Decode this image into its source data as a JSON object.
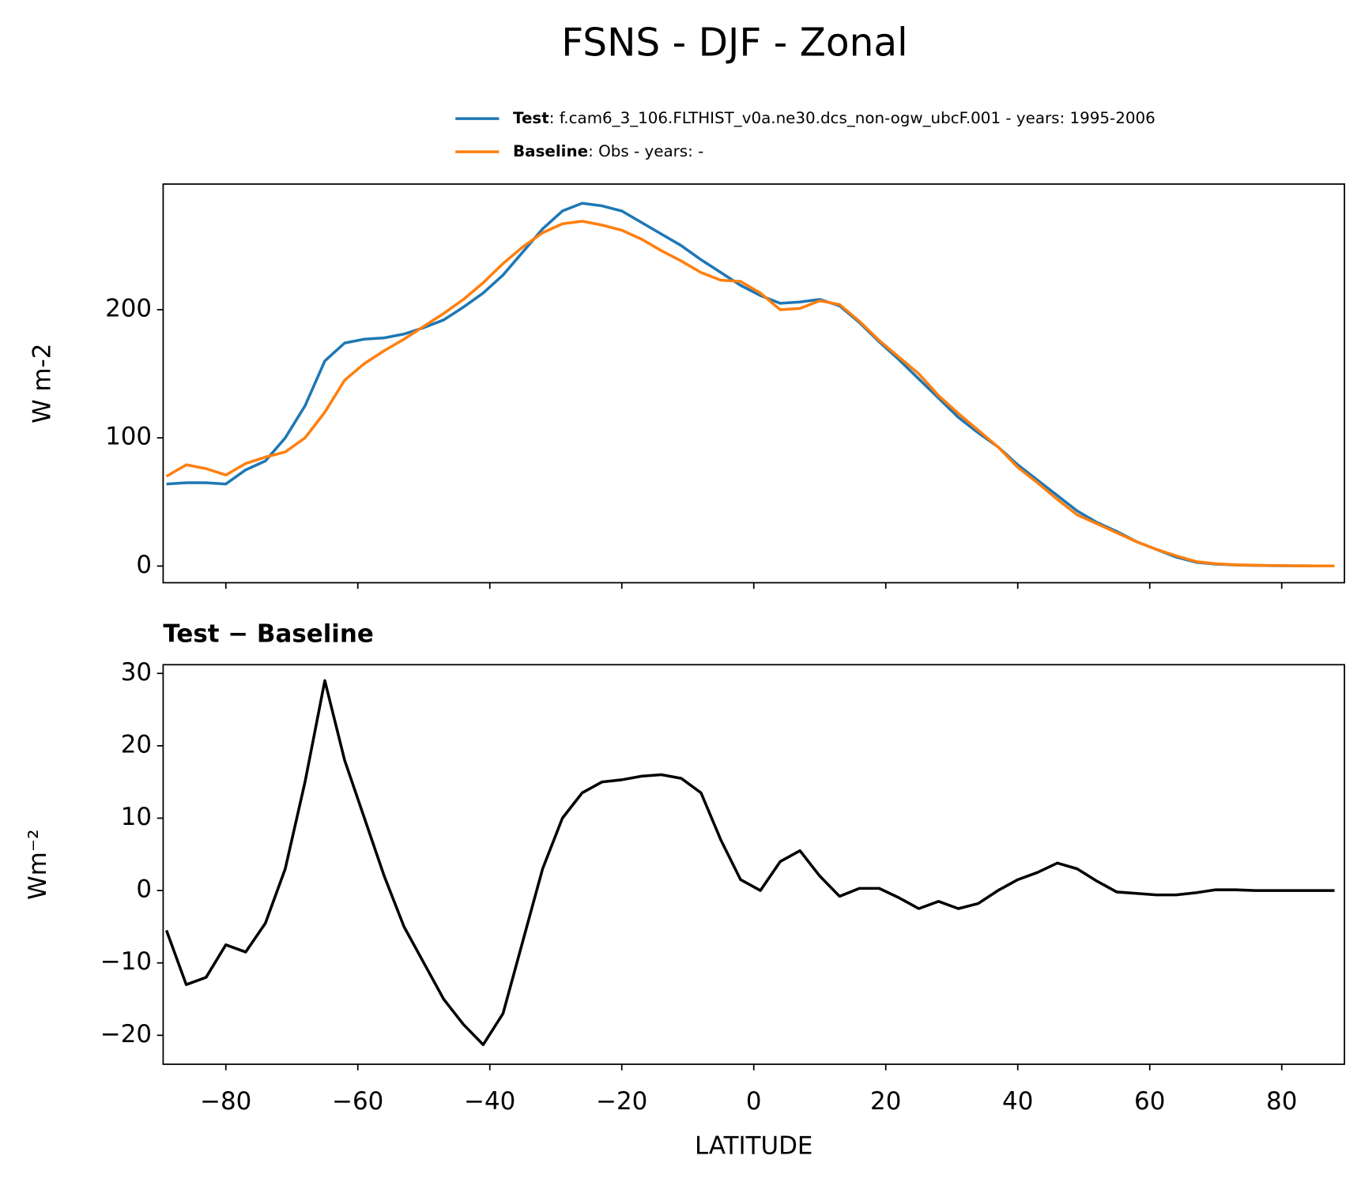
{
  "title": "FSNS - DJF - Zonal",
  "chart_data": [
    {
      "type": "line",
      "ylabel": "W m-2",
      "x": [
        -89,
        -86,
        -83,
        -80,
        -77,
        -74,
        -71,
        -68,
        -65,
        -62,
        -59,
        -56,
        -53,
        -50,
        -47,
        -44,
        -41,
        -38,
        -35,
        -32,
        -29,
        -26,
        -23,
        -20,
        -17,
        -14,
        -11,
        -8,
        -5,
        -2,
        1,
        4,
        7,
        10,
        13,
        16,
        19,
        22,
        25,
        28,
        31,
        34,
        37,
        40,
        43,
        46,
        49,
        52,
        55,
        58,
        61,
        64,
        67,
        70,
        73,
        76,
        79,
        82,
        85,
        88
      ],
      "series": [
        {
          "name": "Test",
          "description": ": f.cam6_3_106.FLTHIST_v0a.ne30.dcs_non-ogw_ubcF.001 - years: 1995-2006",
          "color": "#1f77b4",
          "values": [
            64,
            65,
            65,
            64,
            75,
            82,
            100,
            125,
            160,
            174,
            177,
            178,
            181,
            186,
            192,
            202,
            213,
            227,
            245,
            263,
            277,
            283,
            281,
            277,
            268,
            259,
            250,
            239,
            229,
            219,
            211,
            205,
            206,
            208,
            203,
            190,
            175,
            161,
            146,
            131,
            116,
            104,
            93,
            79,
            67,
            55,
            43,
            34,
            27,
            19,
            13,
            7,
            3,
            1.5,
            0.8,
            0.5,
            0.3,
            0.2,
            0.1,
            0.1
          ]
        },
        {
          "name": "Baseline",
          "description": ": Obs - years: -",
          "color": "#ff7f0e",
          "values": [
            70,
            79,
            76,
            71,
            80,
            85,
            89,
            100,
            120,
            145,
            158,
            168,
            177,
            187,
            197,
            208,
            221,
            236,
            249,
            260,
            267,
            269,
            266,
            262,
            255,
            246,
            238,
            229,
            223,
            222,
            213,
            200,
            201,
            207,
            204,
            191,
            176,
            163,
            150,
            133,
            119,
            106,
            93,
            77,
            65,
            52,
            40,
            33,
            26,
            19,
            13,
            8,
            3.5,
            1.8,
            1,
            0.6,
            0.4,
            0.2,
            0.1,
            0.1
          ]
        }
      ],
      "xlim": [
        -89.5,
        89.5
      ],
      "xticks": [
        -80,
        -60,
        -40,
        -20,
        0,
        20,
        40,
        60,
        80
      ],
      "ylim": [
        -13,
        298
      ],
      "yticks": [
        0,
        100,
        200
      ]
    },
    {
      "type": "line",
      "title": "Test − Baseline",
      "ylabel": "Wm⁻²",
      "xlabel": "LATITUDE",
      "x": [
        -89,
        -86,
        -83,
        -80,
        -77,
        -74,
        -71,
        -68,
        -65,
        -62,
        -59,
        -56,
        -53,
        -50,
        -47,
        -44,
        -41,
        -38,
        -35,
        -32,
        -29,
        -26,
        -23,
        -20,
        -17,
        -14,
        -11,
        -8,
        -5,
        -2,
        1,
        4,
        7,
        10,
        13,
        16,
        19,
        22,
        25,
        28,
        31,
        34,
        37,
        40,
        43,
        46,
        49,
        52,
        55,
        58,
        61,
        64,
        67,
        70,
        73,
        76,
        79,
        82,
        85,
        88
      ],
      "series": [
        {
          "color": "#000000",
          "values": [
            -5.5,
            -13,
            -12,
            -7.5,
            -8.5,
            -4.5,
            3,
            15,
            29,
            18,
            10,
            2,
            -5,
            -10,
            -15,
            -18.5,
            -21.3,
            -17,
            -7,
            3,
            10,
            13.5,
            15,
            15.3,
            15.8,
            16,
            15.5,
            13.5,
            7,
            1.5,
            0,
            4,
            5.5,
            2,
            -0.8,
            0.3,
            0.3,
            -1,
            -2.5,
            -1.5,
            -2.5,
            -1.8,
            0,
            1.5,
            2.5,
            3.8,
            3,
            1.3,
            -0.2,
            -0.4,
            -0.6,
            -0.6,
            -0.3,
            0.1,
            0.1,
            0,
            0,
            0,
            0,
            0
          ]
        }
      ],
      "xlim": [
        -89.5,
        89.5
      ],
      "xticks": [
        {
          "value": -80,
          "label": "−80"
        },
        {
          "value": -60,
          "label": "−60"
        },
        {
          "value": -40,
          "label": "−40"
        },
        {
          "value": -20,
          "label": "−20"
        },
        0,
        20,
        40,
        60,
        80
      ],
      "ylim": [
        -24,
        31.2
      ],
      "yticks": [
        {
          "value": -20,
          "label": "−20"
        },
        {
          "value": -10,
          "label": "−10"
        },
        0,
        10,
        20,
        30
      ]
    }
  ]
}
